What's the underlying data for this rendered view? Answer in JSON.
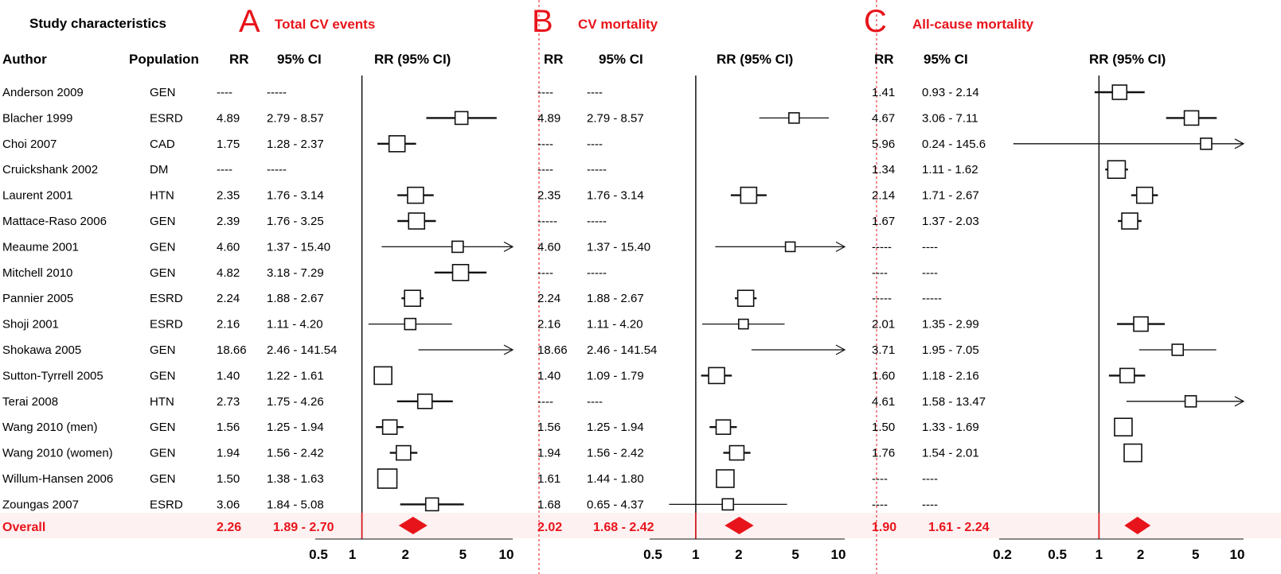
{
  "header": {
    "study_characteristics": "Study characteristics"
  },
  "columns": {
    "author": "Author",
    "population": "Population",
    "rr": "RR",
    "ci": "95% CI",
    "rr_ci": "RR (95% CI)"
  },
  "overall_label": "Overall",
  "colors": {
    "accent": "#e8141b",
    "overall_band": "#fdf1f1"
  },
  "studies": [
    {
      "author": "Anderson 2009",
      "population": "GEN"
    },
    {
      "author": "Blacher 1999",
      "population": "ESRD"
    },
    {
      "author": "Choi 2007",
      "population": "CAD"
    },
    {
      "author": "Cruickshank 2002",
      "population": "DM"
    },
    {
      "author": "Laurent 2001",
      "population": "HTN"
    },
    {
      "author": "Mattace-Raso 2006",
      "population": "GEN"
    },
    {
      "author": "Meaume 2001",
      "population": "GEN"
    },
    {
      "author": "Mitchell 2010",
      "population": "GEN"
    },
    {
      "author": "Pannier 2005",
      "population": "ESRD"
    },
    {
      "author": "Shoji 2001",
      "population": "ESRD"
    },
    {
      "author": "Shokawa 2005",
      "population": "GEN"
    },
    {
      "author": "Sutton-Tyrrell 2005",
      "population": "GEN"
    },
    {
      "author": "Terai 2008",
      "population": "HTN"
    },
    {
      "author": "Wang 2010 (men)",
      "population": "GEN"
    },
    {
      "author": "Wang 2010 (women)",
      "population": "GEN"
    },
    {
      "author": "Willum-Hansen 2006",
      "population": "GEN"
    },
    {
      "author": "Zoungas 2007",
      "population": "ESRD"
    }
  ],
  "chart_data": [
    {
      "type": "forest",
      "letter": "A",
      "title": "Total CV events",
      "x_scale": "log",
      "xlim": [
        0.5,
        10
      ],
      "reference_line": 1,
      "ticks": [
        "0.5",
        "1",
        "2",
        "5",
        "10"
      ],
      "rows": [
        {
          "rr": "----",
          "ci": "-----",
          "est": null,
          "lo": null,
          "hi": null,
          "w": 0
        },
        {
          "rr": "4.89",
          "ci": "2.79 - 8.57",
          "est": 4.89,
          "lo": 2.79,
          "hi": 8.57,
          "w": 16
        },
        {
          "rr": "1.75",
          "ci": "1.28 - 2.37",
          "est": 1.75,
          "lo": 1.28,
          "hi": 2.37,
          "w": 20
        },
        {
          "rr": "----",
          "ci": "-----",
          "est": null,
          "lo": null,
          "hi": null,
          "w": 0
        },
        {
          "rr": "2.35",
          "ci": "1.76 - 3.14",
          "est": 2.35,
          "lo": 1.76,
          "hi": 3.14,
          "w": 20
        },
        {
          "rr": "2.39",
          "ci": "1.76 - 3.25",
          "est": 2.39,
          "lo": 1.76,
          "hi": 3.25,
          "w": 20
        },
        {
          "rr": "4.60",
          "ci": "1.37 - 15.40",
          "est": 4.6,
          "lo": 1.37,
          "hi": 15.4,
          "w": 14
        },
        {
          "rr": "4.82",
          "ci": "3.18 - 7.29",
          "est": 4.82,
          "lo": 3.18,
          "hi": 7.29,
          "w": 20
        },
        {
          "rr": "2.24",
          "ci": "1.88 - 2.67",
          "est": 2.24,
          "lo": 1.88,
          "hi": 2.67,
          "w": 20
        },
        {
          "rr": "2.16",
          "ci": "1.11 - 4.20",
          "est": 2.16,
          "lo": 1.11,
          "hi": 4.2,
          "w": 14
        },
        {
          "rr": "18.66",
          "ci": "2.46 - 141.54",
          "est": 18.66,
          "lo": 2.46,
          "hi": 141.54,
          "w": 0
        },
        {
          "rr": "1.40",
          "ci": "1.22 - 1.61",
          "est": 1.4,
          "lo": 1.22,
          "hi": 1.61,
          "w": 22
        },
        {
          "rr": "2.73",
          "ci": "1.75 - 4.26",
          "est": 2.73,
          "lo": 1.75,
          "hi": 4.26,
          "w": 18
        },
        {
          "rr": "1.56",
          "ci": "1.25 - 1.94",
          "est": 1.56,
          "lo": 1.25,
          "hi": 1.94,
          "w": 18
        },
        {
          "rr": "1.94",
          "ci": "1.56 - 2.42",
          "est": 1.94,
          "lo": 1.56,
          "hi": 2.42,
          "w": 18
        },
        {
          "rr": "1.50",
          "ci": "1.38 - 1.63",
          "est": 1.5,
          "lo": 1.38,
          "hi": 1.63,
          "w": 24
        },
        {
          "rr": "3.06",
          "ci": "1.84 - 5.08",
          "est": 3.06,
          "lo": 1.84,
          "hi": 5.08,
          "w": 16
        }
      ],
      "overall": {
        "rr": "2.26",
        "ci": "1.89 - 2.70",
        "est": 2.26,
        "lo": 1.89,
        "hi": 2.7
      }
    },
    {
      "type": "forest",
      "letter": "B",
      "title": "CV mortality",
      "x_scale": "log",
      "xlim": [
        0.5,
        10
      ],
      "reference_line": 1,
      "ticks": [
        "0.5",
        "1",
        "2",
        "5",
        "10"
      ],
      "rows": [
        {
          "rr": "----",
          "ci": "----",
          "est": null,
          "lo": null,
          "hi": null,
          "w": 0
        },
        {
          "rr": "4.89",
          "ci": "2.79 - 8.57",
          "est": 4.89,
          "lo": 2.79,
          "hi": 8.57,
          "w": 13
        },
        {
          "rr": "----",
          "ci": "----",
          "est": null,
          "lo": null,
          "hi": null,
          "w": 0
        },
        {
          "rr": "----",
          "ci": "-----",
          "est": null,
          "lo": null,
          "hi": null,
          "w": 0
        },
        {
          "rr": "2.35",
          "ci": "1.76 - 3.14",
          "est": 2.35,
          "lo": 1.76,
          "hi": 3.14,
          "w": 20
        },
        {
          "rr": "-----",
          "ci": "-----",
          "est": null,
          "lo": null,
          "hi": null,
          "w": 0
        },
        {
          "rr": "4.60",
          "ci": "1.37 - 15.40",
          "est": 4.6,
          "lo": 1.37,
          "hi": 15.4,
          "w": 12
        },
        {
          "rr": "----",
          "ci": "-----",
          "est": null,
          "lo": null,
          "hi": null,
          "w": 0
        },
        {
          "rr": "2.24",
          "ci": "1.88 - 2.67",
          "est": 2.24,
          "lo": 1.88,
          "hi": 2.67,
          "w": 20
        },
        {
          "rr": "2.16",
          "ci": "1.11 - 4.20",
          "est": 2.16,
          "lo": 1.11,
          "hi": 4.2,
          "w": 12
        },
        {
          "rr": "18.66",
          "ci": "2.46 - 141.54",
          "est": 18.66,
          "lo": 2.46,
          "hi": 141.54,
          "w": 0
        },
        {
          "rr": "1.40",
          "ci": "1.09 - 1.79",
          "est": 1.4,
          "lo": 1.09,
          "hi": 1.79,
          "w": 20
        },
        {
          "rr": "----",
          "ci": "----",
          "est": null,
          "lo": null,
          "hi": null,
          "w": 0
        },
        {
          "rr": "1.56",
          "ci": "1.25 - 1.94",
          "est": 1.56,
          "lo": 1.25,
          "hi": 1.94,
          "w": 18
        },
        {
          "rr": "1.94",
          "ci": "1.56 - 2.42",
          "est": 1.94,
          "lo": 1.56,
          "hi": 2.42,
          "w": 18
        },
        {
          "rr": "1.61",
          "ci": "1.44 - 1.80",
          "est": 1.61,
          "lo": 1.44,
          "hi": 1.8,
          "w": 22
        },
        {
          "rr": "1.68",
          "ci": "0.65 - 4.37",
          "est": 1.68,
          "lo": 0.65,
          "hi": 4.37,
          "w": 14
        }
      ],
      "overall": {
        "rr": "2.02",
        "ci": "1.68 - 2.42",
        "est": 2.02,
        "lo": 1.68,
        "hi": 2.42
      }
    },
    {
      "type": "forest",
      "letter": "C",
      "title": "All-cause mortality",
      "x_scale": "log",
      "xlim": [
        0.2,
        10
      ],
      "reference_line": 1,
      "ticks": [
        "0.2",
        "0.5",
        "1",
        "2",
        "5",
        "10"
      ],
      "rows": [
        {
          "rr": "1.41",
          "ci": "0.93 - 2.14",
          "est": 1.41,
          "lo": 0.93,
          "hi": 2.14,
          "w": 18
        },
        {
          "rr": "4.67",
          "ci": "3.06 - 7.11",
          "est": 4.67,
          "lo": 3.06,
          "hi": 7.11,
          "w": 18
        },
        {
          "rr": "5.96",
          "ci": "0.24 - 145.6",
          "est": 5.96,
          "lo": 0.24,
          "hi": 145.6,
          "w": 14
        },
        {
          "rr": "1.34",
          "ci": "1.11 - 1.62",
          "est": 1.34,
          "lo": 1.11,
          "hi": 1.62,
          "w": 22
        },
        {
          "rr": "2.14",
          "ci": "1.71 - 2.67",
          "est": 2.14,
          "lo": 1.71,
          "hi": 2.67,
          "w": 20
        },
        {
          "rr": "1.67",
          "ci": "1.37 - 2.03",
          "est": 1.67,
          "lo": 1.37,
          "hi": 2.03,
          "w": 20
        },
        {
          "rr": "-----",
          "ci": "----",
          "est": null,
          "lo": null,
          "hi": null,
          "w": 0
        },
        {
          "rr": "----",
          "ci": "----",
          "est": null,
          "lo": null,
          "hi": null,
          "w": 0
        },
        {
          "rr": "-----",
          "ci": "-----",
          "est": null,
          "lo": null,
          "hi": null,
          "w": 0
        },
        {
          "rr": "2.01",
          "ci": "1.35 - 2.99",
          "est": 2.01,
          "lo": 1.35,
          "hi": 2.99,
          "w": 18
        },
        {
          "rr": "3.71",
          "ci": "1.95 - 7.05",
          "est": 3.71,
          "lo": 1.95,
          "hi": 7.05,
          "w": 14
        },
        {
          "rr": "1.60",
          "ci": "1.18 - 2.16",
          "est": 1.6,
          "lo": 1.18,
          "hi": 2.16,
          "w": 18
        },
        {
          "rr": "4.61",
          "ci": "1.58 - 13.47",
          "est": 4.61,
          "lo": 1.58,
          "hi": 13.47,
          "w": 14
        },
        {
          "rr": "1.50",
          "ci": "1.33 - 1.69",
          "est": 1.5,
          "lo": 1.33,
          "hi": 1.69,
          "w": 22
        },
        {
          "rr": "1.76",
          "ci": "1.54 - 2.01",
          "est": 1.76,
          "lo": 1.54,
          "hi": 2.01,
          "w": 22
        },
        {
          "rr": "----",
          "ci": "----",
          "est": null,
          "lo": null,
          "hi": null,
          "w": 0
        },
        {
          "rr": "----",
          "ci": "----",
          "est": null,
          "lo": null,
          "hi": null,
          "w": 0
        }
      ],
      "overall": {
        "rr": "1.90",
        "ci": "1.61 - 2.24",
        "est": 1.9,
        "lo": 1.61,
        "hi": 2.24
      }
    }
  ]
}
